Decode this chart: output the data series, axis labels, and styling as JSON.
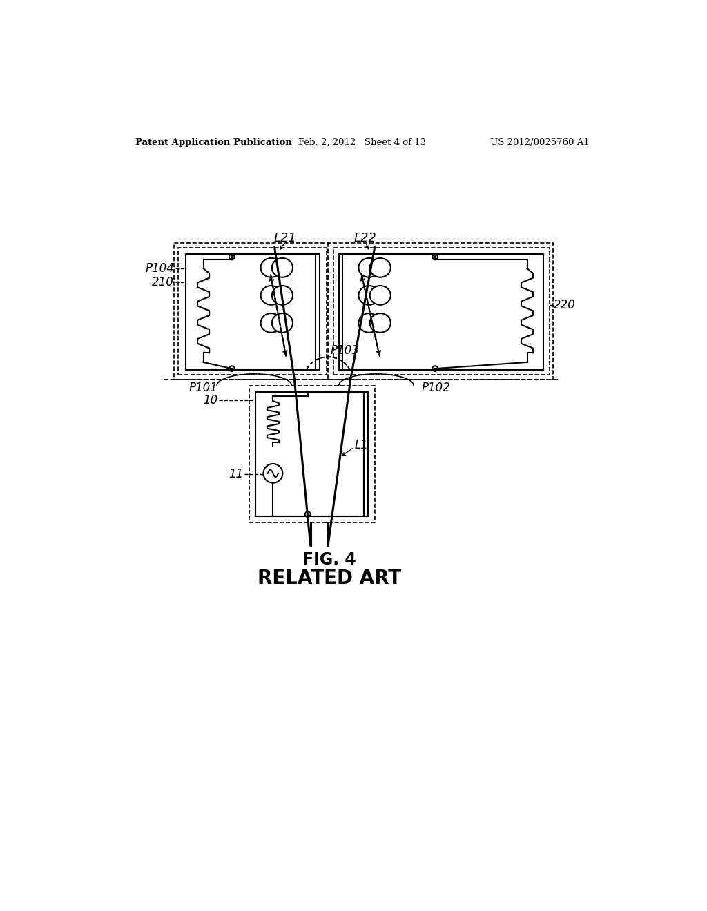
{
  "title": "FIG. 4",
  "subtitle": "RELATED ART",
  "header_left": "Patent Application Publication",
  "header_center": "Feb. 2, 2012   Sheet 4 of 13",
  "header_right": "US 2012/0025760 A1",
  "bg_color": "#ffffff",
  "line_color": "#000000"
}
